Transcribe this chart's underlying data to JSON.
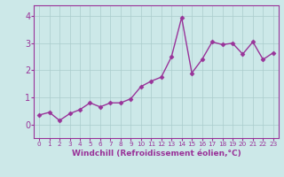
{
  "x": [
    0,
    1,
    2,
    3,
    4,
    5,
    6,
    7,
    8,
    9,
    10,
    11,
    12,
    13,
    14,
    15,
    16,
    17,
    18,
    19,
    20,
    21,
    22,
    23
  ],
  "y": [
    0.35,
    0.45,
    0.15,
    0.4,
    0.55,
    0.8,
    0.65,
    0.8,
    0.8,
    0.95,
    1.4,
    1.6,
    1.75,
    2.5,
    3.95,
    1.9,
    2.4,
    3.05,
    2.95,
    3.0,
    2.6,
    3.05,
    2.4,
    2.65
  ],
  "line_color": "#993399",
  "marker": "D",
  "markersize": 2.5,
  "linewidth": 1.0,
  "background_color": "#cce8e8",
  "grid_color": "#aacccc",
  "xlabel": "Windchill (Refroidissement éolien,°C)",
  "ylabel": "",
  "xlim": [
    -0.5,
    23.5
  ],
  "ylim": [
    -0.5,
    4.4
  ],
  "yticks": [
    0,
    1,
    2,
    3,
    4
  ],
  "xticks": [
    0,
    1,
    2,
    3,
    4,
    5,
    6,
    7,
    8,
    9,
    10,
    11,
    12,
    13,
    14,
    15,
    16,
    17,
    18,
    19,
    20,
    21,
    22,
    23
  ],
  "xlabel_fontsize": 6.5,
  "ytick_fontsize": 7,
  "xtick_fontsize": 5.2,
  "tick_color": "#993399",
  "label_color": "#993399",
  "spine_color": "#993399"
}
